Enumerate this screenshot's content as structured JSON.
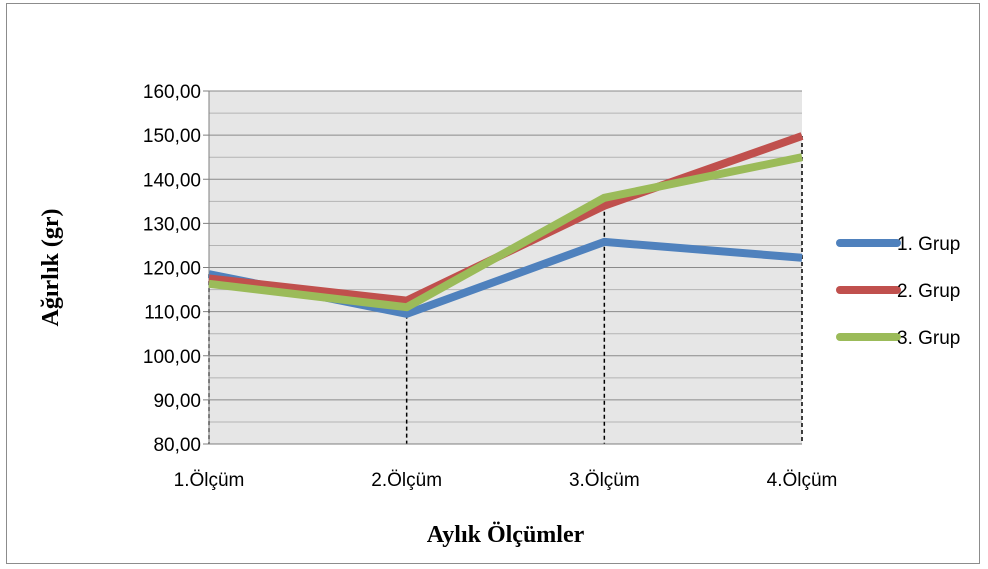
{
  "chart_data": {
    "type": "line",
    "title": "",
    "xlabel": "Aylık Ölçümler",
    "ylabel": "Ağırlık (gr)",
    "categories": [
      "1.Ölçüm",
      "2.Ölçüm",
      "3.Ölçüm",
      "4.Ölçüm"
    ],
    "ylim": [
      80,
      160
    ],
    "yticks": [
      "80,00",
      "90,00",
      "100,00",
      "110,00",
      "120,00",
      "130,00",
      "140,00",
      "150,00",
      "160,00"
    ],
    "grid": true,
    "drop_lines": true,
    "legend_position": "right",
    "series": [
      {
        "name": "1. Grup",
        "color": "#4f81bd",
        "values": [
          118.5,
          109.5,
          125.8,
          122.2
        ]
      },
      {
        "name": "2. Grup",
        "color": "#c0504d",
        "values": [
          117.5,
          112.5,
          134.0,
          149.8
        ]
      },
      {
        "name": "3. Grup",
        "color": "#9bbb59",
        "values": [
          116.3,
          111.0,
          135.8,
          145.0
        ]
      }
    ]
  }
}
